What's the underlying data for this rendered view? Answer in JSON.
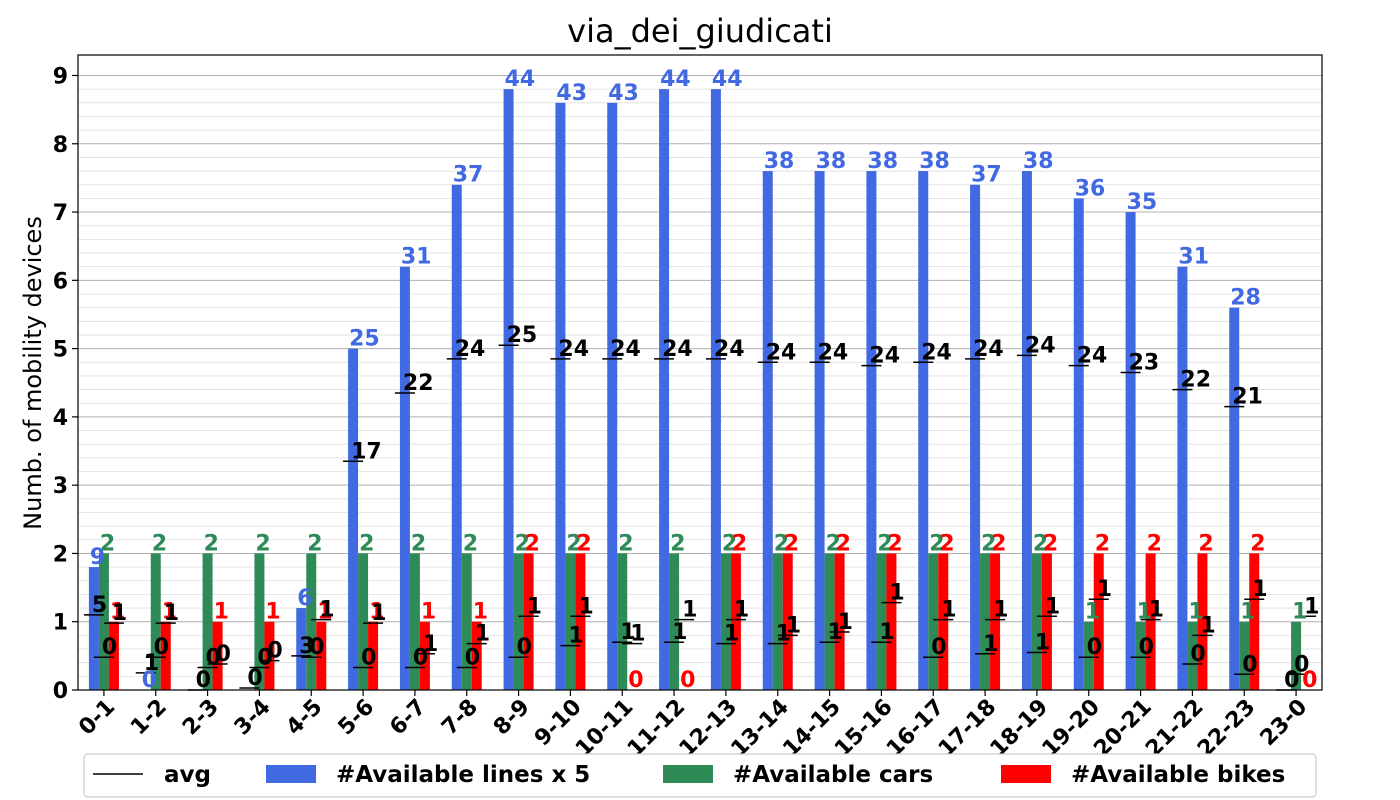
{
  "chart_data": {
    "type": "bar",
    "title": "via_dei_giudicati",
    "xlabel": "",
    "ylabel": "Numb. of mobility devices",
    "ylim": [
      0,
      9.3
    ],
    "yticks": [
      "0",
      "1",
      "2",
      "3",
      "4",
      "5",
      "6",
      "7",
      "8",
      "9"
    ],
    "grid": true,
    "legend_position": "bottom",
    "categories": [
      "0-1",
      "1-2",
      "2-3",
      "3-4",
      "4-5",
      "5-6",
      "6-7",
      "7-8",
      "8-9",
      "9-10",
      "10-11",
      "11-12",
      "12-13",
      "13-14",
      "14-15",
      "15-16",
      "16-17",
      "17-18",
      "18-19",
      "19-20",
      "20-21",
      "21-22",
      "22-23",
      "23-0"
    ],
    "series": [
      {
        "name": "#Available lines x 5",
        "color": "#4169e1",
        "values": [
          1.8,
          0.0,
          0.0,
          0.0,
          1.2,
          5.0,
          6.2,
          7.4,
          8.8,
          8.6,
          8.6,
          8.8,
          8.8,
          7.6,
          7.6,
          7.6,
          7.6,
          7.4,
          7.6,
          7.2,
          7.0,
          6.2,
          5.6,
          0.0
        ],
        "labels": [
          "9",
          "0",
          "",
          "",
          "6",
          "25",
          "31",
          "37",
          "44",
          "43",
          "43",
          "44",
          "44",
          "38",
          "38",
          "38",
          "38",
          "37",
          "38",
          "36",
          "35",
          "31",
          "28",
          ""
        ],
        "avg": [
          1.1,
          0.25,
          0.0,
          0.03,
          0.5,
          3.35,
          4.35,
          4.85,
          5.05,
          4.85,
          4.85,
          4.85,
          4.85,
          4.8,
          4.8,
          4.75,
          4.8,
          4.85,
          4.9,
          4.75,
          4.65,
          4.4,
          4.15,
          0.0
        ],
        "avg_labels": [
          "5",
          "1",
          "0",
          "0",
          "3",
          "17",
          "22",
          "24",
          "25",
          "24",
          "24",
          "24",
          "24",
          "24",
          "24",
          "24",
          "24",
          "24",
          "24",
          "24",
          "23",
          "22",
          "21",
          "0"
        ]
      },
      {
        "name": "#Available cars",
        "color": "#2e8b57",
        "values": [
          2,
          2,
          2,
          2,
          2,
          2,
          2,
          2,
          2,
          2,
          2,
          2,
          2,
          2,
          2,
          2,
          2,
          2,
          2,
          1,
          1,
          1,
          1,
          1
        ],
        "labels": [
          "2",
          "2",
          "2",
          "2",
          "2",
          "2",
          "2",
          "2",
          "2",
          "2",
          "2",
          "2",
          "2",
          "2",
          "2",
          "2",
          "2",
          "2",
          "2",
          "1",
          "1",
          "1",
          "1",
          "1"
        ],
        "avg": [
          0.48,
          0.48,
          0.33,
          0.33,
          0.48,
          0.33,
          0.33,
          0.33,
          0.48,
          0.65,
          0.7,
          0.7,
          0.68,
          0.68,
          0.7,
          0.7,
          0.48,
          0.53,
          0.55,
          0.48,
          0.48,
          0.38,
          0.23,
          0.23
        ],
        "avg_labels": [
          "0",
          "0",
          "0",
          "0",
          "0",
          "0",
          "0",
          "0",
          "0",
          "1",
          "1",
          "1",
          "1",
          "1",
          "1",
          "1",
          "0",
          "1",
          "1",
          "0",
          "0",
          "0",
          "0",
          "0"
        ]
      },
      {
        "name": "#Available bikes",
        "color": "#ff0000",
        "values": [
          1,
          1,
          1,
          1,
          1,
          1,
          1,
          1,
          2,
          2,
          0,
          0,
          2,
          2,
          2,
          2,
          2,
          2,
          2,
          2,
          2,
          2,
          2,
          0
        ],
        "labels": [
          "1",
          "1",
          "1",
          "1",
          "1",
          "1",
          "1",
          "1",
          "2",
          "2",
          "0",
          "0",
          "2",
          "2",
          "2",
          "2",
          "2",
          "2",
          "2",
          "2",
          "2",
          "2",
          "2",
          "0"
        ],
        "avg": [
          0.98,
          0.98,
          0.38,
          0.43,
          1.03,
          0.98,
          0.53,
          0.68,
          1.08,
          1.08,
          0.68,
          1.03,
          1.03,
          0.8,
          0.85,
          1.28,
          1.03,
          1.03,
          1.08,
          1.33,
          1.03,
          0.8,
          1.33,
          1.08
        ],
        "avg_labels": [
          "1",
          "1",
          "0",
          "0",
          "1",
          "1",
          "1",
          "1",
          "1",
          "1",
          "1",
          "1",
          "1",
          "1",
          "1",
          "1",
          "1",
          "1",
          "1",
          "1",
          "1",
          "1",
          "1",
          "1"
        ]
      }
    ],
    "legend": [
      {
        "label": "avg",
        "kind": "line",
        "color": "#000000"
      },
      {
        "label": "#Available lines x 5",
        "kind": "patch",
        "color": "#4169e1"
      },
      {
        "label": "#Available cars",
        "kind": "patch",
        "color": "#2e8b57"
      },
      {
        "label": "#Available bikes",
        "kind": "patch",
        "color": "#ff0000"
      }
    ]
  }
}
